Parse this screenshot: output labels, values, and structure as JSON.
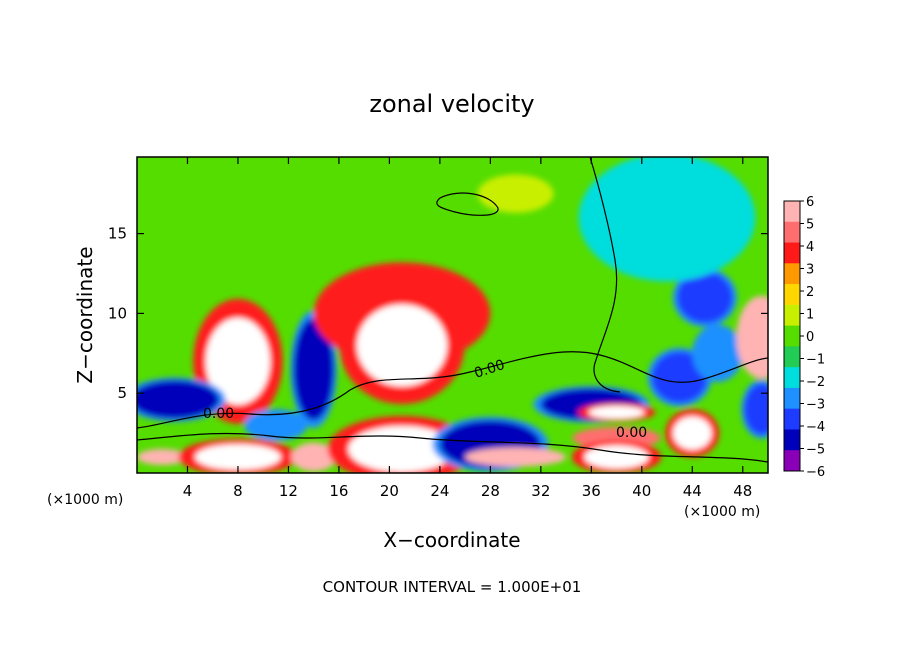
{
  "chart_data": {
    "type": "heatmap",
    "title": "zonal velocity",
    "xlabel": "X−coordinate",
    "ylabel": "Z−coordinate",
    "x_unit_label_left": "(×1000 m)",
    "x_unit_label_right": "(×1000 m)",
    "footer": "CONTOUR INTERVAL = 1.000E+01",
    "xlim": [
      0,
      50
    ],
    "ylim": [
      0,
      19.8
    ],
    "x_ticks": [
      4,
      8,
      12,
      16,
      20,
      24,
      28,
      32,
      36,
      40,
      44,
      48
    ],
    "x_tick_labels": [
      "4",
      "8",
      "12",
      "16",
      "20",
      "24",
      "28",
      "32",
      "36",
      "40",
      "44",
      "48"
    ],
    "y_ticks": [
      5,
      10,
      15
    ],
    "y_tick_labels": [
      "5",
      "10",
      "15"
    ],
    "colorbar": {
      "min": -6,
      "max": 6,
      "labels": [
        "6",
        "5",
        "4",
        "3",
        "2",
        "1",
        "0",
        "−1",
        "−2",
        "−3",
        "−4",
        "−5",
        "−6"
      ],
      "colors": [
        "#ffb3b3",
        "#ff6e6e",
        "#ff1a1a",
        "#ff9900",
        "#ffd700",
        "#c9ef00",
        "#55dd00",
        "#22cc55",
        "#00dddd",
        "#1e90ff",
        "#1e3cff",
        "#0000bb",
        "#8a00b8"
      ]
    },
    "contour_labels": [
      "0.00",
      "0.00",
      "0.00"
    ],
    "features": [
      {
        "x": 8,
        "z": 7,
        "rx": 3,
        "rz": 3.4,
        "value": 8
      },
      {
        "x": 2,
        "z": 1,
        "rx": 2,
        "rz": 0.5,
        "value": 6
      },
      {
        "x": 3,
        "z": 4.6,
        "rx": 3.5,
        "rz": 1.2,
        "value": -5
      },
      {
        "x": 8,
        "z": 1,
        "rx": 4,
        "rz": 1.0,
        "value": 8
      },
      {
        "x": 14,
        "z": 6.5,
        "rx": 1.6,
        "rz": 3.2,
        "value": -5
      },
      {
        "x": 14,
        "z": 1,
        "rx": 1.8,
        "rz": 0.9,
        "value": 6
      },
      {
        "x": 11,
        "z": 3,
        "rx": 2.5,
        "rz": 1.0,
        "value": -3
      },
      {
        "x": 21,
        "z": 10,
        "rx": 7,
        "rz": 3.2,
        "value": 4
      },
      {
        "x": 21,
        "z": 8,
        "rx": 4.2,
        "rz": 3.2,
        "value": 8
      },
      {
        "x": 21,
        "z": 1.5,
        "rx": 5,
        "rz": 1.8,
        "value": 8
      },
      {
        "x": 28,
        "z": 2.4,
        "rx": 2.5,
        "rz": 0.9,
        "value": 7
      },
      {
        "x": 28,
        "z": 1.8,
        "rx": 4,
        "rz": 1.5,
        "value": -5
      },
      {
        "x": 30,
        "z": 1,
        "rx": 4,
        "rz": 0.6,
        "value": 6
      },
      {
        "x": 36,
        "z": 4.3,
        "rx": 4,
        "rz": 1.0,
        "value": -5
      },
      {
        "x": 38,
        "z": 3.8,
        "rx": 2.6,
        "rz": 0.5,
        "value": 7
      },
      {
        "x": 38,
        "z": 2.2,
        "rx": 3.5,
        "rz": 0.7,
        "value": 5
      },
      {
        "x": 38,
        "z": 1,
        "rx": 3,
        "rz": 0.9,
        "value": 7
      },
      {
        "x": 44,
        "z": 2.5,
        "rx": 1.8,
        "rz": 1.3,
        "value": 7
      },
      {
        "x": 45,
        "z": 11,
        "rx": 2.2,
        "rz": 1.6,
        "value": -4
      },
      {
        "x": 43,
        "z": 6,
        "rx": 2.2,
        "rz": 1.6,
        "value": -4
      },
      {
        "x": 46,
        "z": 7.5,
        "rx": 2,
        "rz": 1.8,
        "value": -3
      },
      {
        "x": 49.5,
        "z": 8.5,
        "rx": 2,
        "rz": 2.6,
        "value": 6
      },
      {
        "x": 49.5,
        "z": 4,
        "rx": 1.4,
        "rz": 1.6,
        "value": -4
      },
      {
        "x": 42,
        "z": 16,
        "rx": 7,
        "rz": 4,
        "value": -1.5
      },
      {
        "x": 30,
        "z": 17.5,
        "rx": 3,
        "rz": 1.2,
        "value": 1
      }
    ]
  }
}
